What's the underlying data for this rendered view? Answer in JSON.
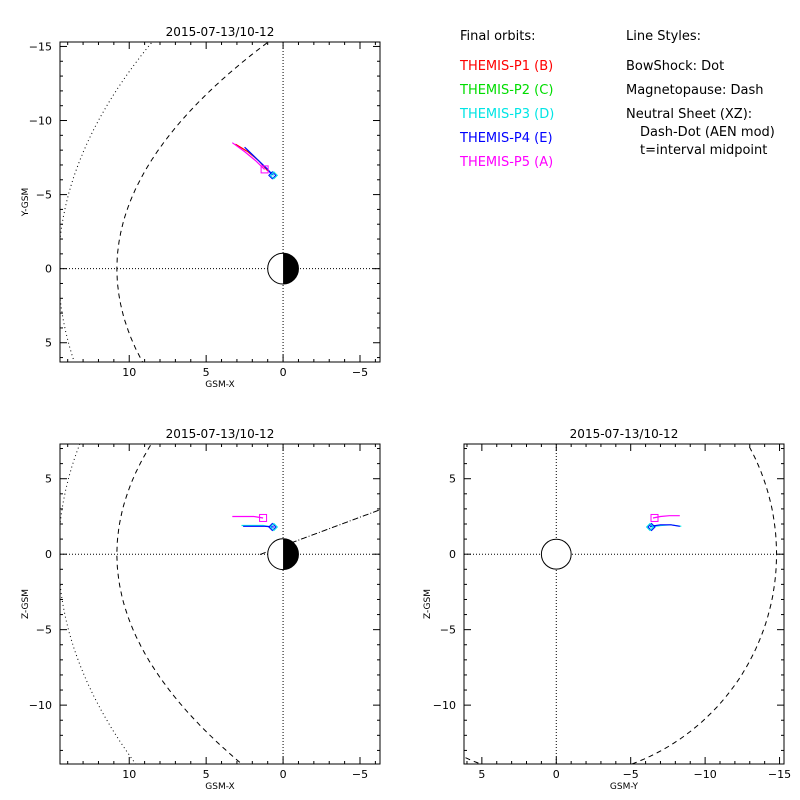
{
  "legend": {
    "heading": "Final orbits:",
    "probes": [
      {
        "label": "THEMIS-P1 (B)",
        "color": "#ff0000"
      },
      {
        "label": "THEMIS-P2 (C)",
        "color": "#00dd00"
      },
      {
        "label": "THEMIS-P3 (D)",
        "color": "#00e5e5"
      },
      {
        "label": "THEMIS-P4 (E)",
        "color": "#0000ff"
      },
      {
        "label": "THEMIS-P5 (A)",
        "color": "#ff00ff"
      }
    ],
    "styles_heading": "Line Styles:",
    "style_lines": [
      "BowShock: Dot",
      "Magnetopause: Dash",
      "Neutral Sheet (XZ):",
      "Dash-Dot (AEN mod)",
      "t=interval midpoint"
    ]
  },
  "chart_data": [
    {
      "type": "scatter",
      "title": "2015-07-13/10-12",
      "xlabel": "GSM-X",
      "ylabel": "Y-GSM",
      "xlim": [
        14.5,
        -6.3
      ],
      "ylim": [
        6.3,
        -15.3
      ],
      "xticks": [
        10,
        5,
        0,
        -5
      ],
      "yticks": [
        5,
        0,
        -5,
        -10,
        -15
      ],
      "orbits": [
        {
          "probe": "THEMIS-P1 (B)",
          "color": "#ff0000",
          "x": [
            3.1,
            2.3,
            1.6,
            1.0
          ],
          "y": [
            -8.4,
            -7.9,
            -7.3,
            -6.6
          ]
        },
        {
          "probe": "THEMIS-P3 (D)",
          "color": "#00e5e5",
          "x": [
            2.4,
            1.6,
            0.9,
            0.6
          ],
          "y": [
            -8.1,
            -7.3,
            -6.6,
            -6.3
          ]
        },
        {
          "probe": "THEMIS-P4 (E)",
          "color": "#0000ff",
          "x": [
            2.5,
            1.7,
            1.0,
            0.7
          ],
          "y": [
            -8.2,
            -7.4,
            -6.7,
            -6.3
          ]
        },
        {
          "probe": "THEMIS-P5 (A)",
          "color": "#ff00ff",
          "x": [
            3.3,
            2.5,
            1.8,
            1.2
          ],
          "y": [
            -8.5,
            -7.9,
            -7.3,
            -6.7
          ]
        }
      ],
      "markers": [
        {
          "probe": "THEMIS-P5 (A)",
          "shape": "square",
          "color": "#ff00ff",
          "x": 1.2,
          "y": -6.7
        },
        {
          "probe": "THEMIS-P4 (E)",
          "shape": "diamond",
          "color": "#0000ff",
          "x": 0.7,
          "y": -6.3
        },
        {
          "probe": "THEMIS-P3 (D)",
          "shape": "diamond",
          "color": "#00e5e5",
          "x": 0.6,
          "y": -6.3
        }
      ],
      "earth": "day-night",
      "bowshock": "dot",
      "magnetopause": "dash"
    },
    {
      "type": "scatter",
      "title": "2015-07-13/10-12",
      "xlabel": "GSM-X",
      "ylabel": "Z-GSM",
      "xlim": [
        14.5,
        -6.3
      ],
      "ylim": [
        -13.9,
        7.3
      ],
      "xticks": [
        10,
        5,
        0,
        -5
      ],
      "yticks": [
        5,
        0,
        -5,
        -10
      ],
      "orbits": [
        {
          "probe": "THEMIS-P5 (A)",
          "color": "#ff00ff",
          "x": [
            3.3,
            2.5,
            1.9,
            1.3
          ],
          "y": [
            2.5,
            2.5,
            2.5,
            2.4
          ]
        },
        {
          "probe": "THEMIS-P3 (D)",
          "color": "#00e5e5",
          "x": [
            2.7,
            2.0,
            1.3,
            0.7
          ],
          "y": [
            1.9,
            1.9,
            1.9,
            1.8
          ]
        },
        {
          "probe": "THEMIS-P4 (E)",
          "color": "#0000ff",
          "x": [
            2.6,
            1.9,
            1.2,
            0.6
          ],
          "y": [
            1.85,
            1.85,
            1.85,
            1.8
          ]
        }
      ],
      "markers": [
        {
          "probe": "THEMIS-P5 (A)",
          "shape": "square",
          "color": "#ff00ff",
          "x": 1.3,
          "y": 2.4
        },
        {
          "probe": "THEMIS-P4 (E)",
          "shape": "diamond",
          "color": "#0000ff",
          "x": 0.7,
          "y": 1.8
        },
        {
          "probe": "THEMIS-P3 (D)",
          "shape": "diamond",
          "color": "#00e5e5",
          "x": 0.6,
          "y": 1.8
        }
      ],
      "earth": "day-night",
      "bowshock": "dot",
      "magnetopause": "dash",
      "neutral_sheet": "dash-dot"
    },
    {
      "type": "scatter",
      "title": "2015-07-13/10-12",
      "xlabel": "GSM-Y",
      "ylabel": "Z-GSM",
      "xlim": [
        6.2,
        -15.3
      ],
      "ylim": [
        -13.9,
        7.3
      ],
      "xticks": [
        5,
        0,
        -5,
        -10,
        -15
      ],
      "yticks": [
        5,
        0,
        -5,
        -10
      ],
      "orbits": [
        {
          "probe": "THEMIS-P5 (A)",
          "color": "#ff00ff",
          "x": [
            -6.5,
            -7.0,
            -7.6,
            -8.3
          ],
          "y": [
            2.4,
            2.5,
            2.55,
            2.55
          ]
        },
        {
          "probe": "THEMIS-P3 (D)",
          "color": "#00e5e5",
          "x": [
            -6.3,
            -7.0,
            -7.7,
            -8.4
          ],
          "y": [
            1.8,
            1.9,
            1.95,
            1.85
          ]
        },
        {
          "probe": "THEMIS-P4 (E)",
          "color": "#0000ff",
          "x": [
            -6.3,
            -7.0,
            -7.7,
            -8.3
          ],
          "y": [
            1.85,
            1.95,
            1.95,
            1.85
          ]
        }
      ],
      "markers": [
        {
          "probe": "THEMIS-P5 (A)",
          "shape": "square",
          "color": "#ff00ff",
          "x": -6.6,
          "y": 2.4
        },
        {
          "probe": "THEMIS-P4 (E)",
          "shape": "diamond",
          "color": "#0000ff",
          "x": -6.4,
          "y": 1.8
        },
        {
          "probe": "THEMIS-P3 (D)",
          "shape": "diamond",
          "color": "#00e5e5",
          "x": -6.3,
          "y": 1.8
        }
      ],
      "earth": "circle",
      "magnetopause": "dash"
    }
  ]
}
